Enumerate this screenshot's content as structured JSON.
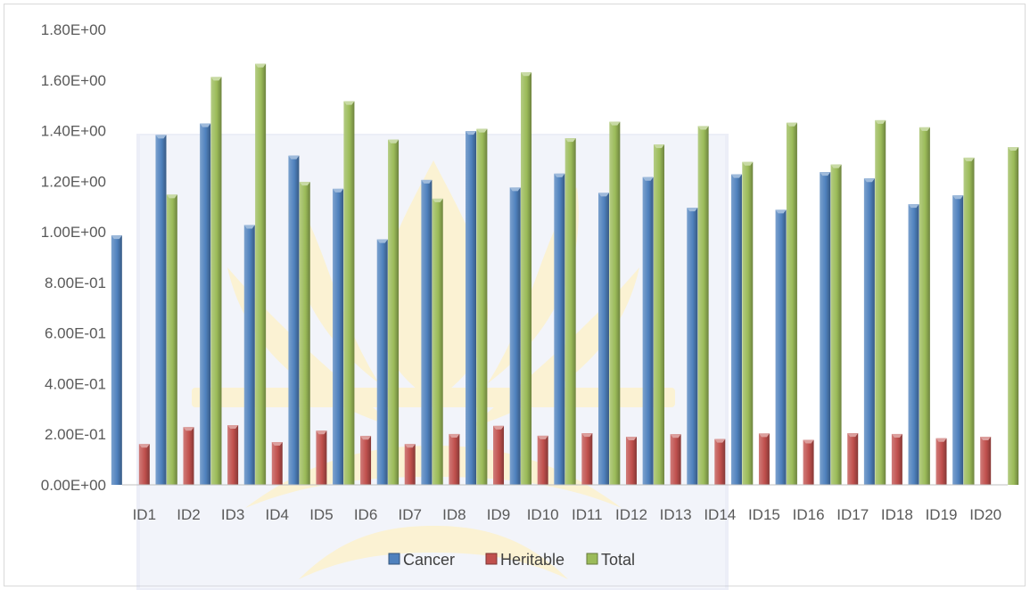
{
  "chart_data": {
    "type": "bar",
    "title": "",
    "xlabel": "",
    "ylabel": "",
    "categories": [
      "ID1",
      "ID2",
      "ID3",
      "ID4",
      "ID5",
      "ID6",
      "ID7",
      "ID8",
      "ID9",
      "ID10",
      "ID11",
      "ID12",
      "ID13",
      "ID14",
      "ID15",
      "ID16",
      "ID17",
      "ID18",
      "ID19",
      "ID20"
    ],
    "series": [
      {
        "name": "Cancer",
        "color": "#4f81bd",
        "values": [
          0.986,
          1.383,
          1.428,
          1.027,
          1.301,
          1.17,
          0.97,
          1.205,
          1.398,
          1.175,
          1.23,
          1.154,
          1.216,
          1.095,
          1.227,
          1.087,
          1.236,
          1.211,
          1.109,
          1.144
        ]
      },
      {
        "name": "Heritable",
        "color": "#c0504d",
        "values": [
          0.161,
          0.228,
          0.236,
          0.169,
          0.214,
          0.193,
          0.161,
          0.201,
          0.233,
          0.194,
          0.204,
          0.19,
          0.2,
          0.181,
          0.203,
          0.178,
          0.204,
          0.201,
          0.184,
          0.19
        ]
      },
      {
        "name": "Total",
        "color": "#9bbb59",
        "values": [
          1.147,
          1.612,
          1.664,
          1.197,
          1.516,
          1.364,
          1.131,
          1.407,
          1.63,
          1.37,
          1.435,
          1.345,
          1.418,
          1.276,
          1.431,
          1.266,
          1.441,
          1.413,
          1.293,
          1.335
        ]
      }
    ],
    "ylim": [
      0,
      1.8
    ],
    "y_ticks": [
      "0.00E+00",
      "2.00E-01",
      "4.00E-01",
      "6.00E-01",
      "8.00E-01",
      "1.00E+00",
      "1.20E+00",
      "1.40E+00",
      "1.60E+00",
      "1.80E+00"
    ],
    "legend_position": "bottom",
    "grid": false
  }
}
